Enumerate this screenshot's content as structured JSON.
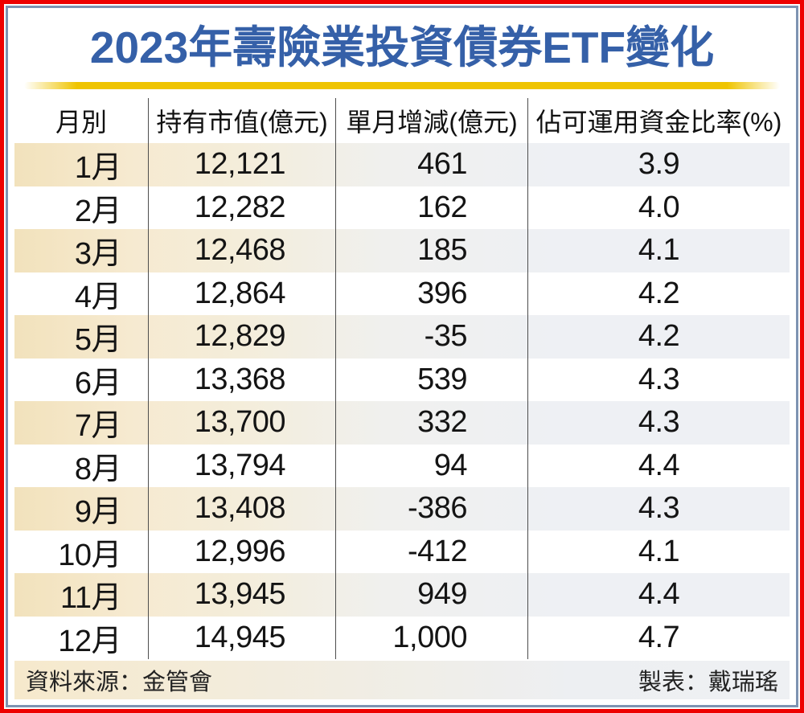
{
  "header": {
    "title": "2023年壽險業投資債券ETF變化"
  },
  "chart_data": {
    "type": "table",
    "title": "2023年壽險業投資債券ETF變化",
    "columns": [
      "月別",
      "持有市值(億元)",
      "單月增減(億元)",
      "佔可運用資金比率(%)"
    ],
    "rows": [
      [
        "1月",
        "12,121",
        "461",
        "3.9"
      ],
      [
        "2月",
        "12,282",
        "162",
        "4.0"
      ],
      [
        "3月",
        "12,468",
        "185",
        "4.1"
      ],
      [
        "4月",
        "12,864",
        "396",
        "4.2"
      ],
      [
        "5月",
        "12,829",
        "-35",
        "4.2"
      ],
      [
        "6月",
        "13,368",
        "539",
        "4.3"
      ],
      [
        "7月",
        "13,700",
        "332",
        "4.3"
      ],
      [
        "8月",
        "13,794",
        "94",
        "4.4"
      ],
      [
        "9月",
        "13,408",
        "-386",
        "4.3"
      ],
      [
        "10月",
        "12,996",
        "-412",
        "4.1"
      ],
      [
        "11月",
        "13,945",
        "949",
        "4.4"
      ],
      [
        "12月",
        "14,945",
        "1,000",
        "4.7"
      ]
    ],
    "categories": [
      "1月",
      "2月",
      "3月",
      "4月",
      "5月",
      "6月",
      "7月",
      "8月",
      "9月",
      "10月",
      "11月",
      "12月"
    ],
    "series": [
      {
        "name": "持有市值(億元)",
        "values": [
          12121,
          12282,
          12468,
          12864,
          12829,
          13368,
          13700,
          13794,
          13408,
          12996,
          13945,
          14945
        ]
      },
      {
        "name": "單月增減(億元)",
        "values": [
          461,
          162,
          185,
          396,
          -35,
          539,
          332,
          94,
          -386,
          -412,
          949,
          1000
        ]
      },
      {
        "name": "佔可運用資金比率(%)",
        "values": [
          3.9,
          4.0,
          4.1,
          4.2,
          4.2,
          4.3,
          4.3,
          4.4,
          4.3,
          4.1,
          4.4,
          4.7
        ]
      }
    ]
  },
  "footer": {
    "source": "資料來源：金管會",
    "credit": "製表：戴瑞瑤"
  },
  "colors": {
    "title_blue": "#3560a8",
    "gold_accent": "#efc400",
    "frame_red": "#ee0000",
    "frame_blue": "#7e93b2",
    "stripe_warm": "#f2e2bc",
    "stripe_cool": "#eef0f4",
    "separator_gray": "#4d4d4d"
  }
}
